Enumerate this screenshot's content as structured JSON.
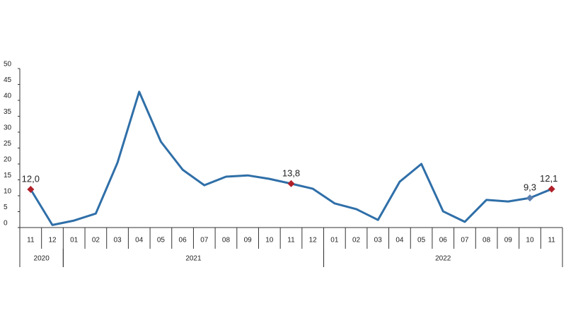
{
  "chart_data": {
    "type": "line",
    "categories": [
      "11",
      "12",
      "01",
      "02",
      "03",
      "04",
      "05",
      "06",
      "07",
      "08",
      "09",
      "10",
      "11",
      "12",
      "01",
      "02",
      "03",
      "04",
      "05",
      "06",
      "07",
      "08",
      "09",
      "10",
      "11"
    ],
    "x_groups": [
      {
        "label": "2020",
        "span": 2
      },
      {
        "label": "2021",
        "span": 12
      },
      {
        "label": "2022",
        "span": 11
      }
    ],
    "series": [
      {
        "color": "#2f6fa8",
        "values": [
          12.0,
          0.8,
          2.2,
          4.4,
          20.4,
          42.7,
          27,
          18.2,
          13.3,
          16,
          16.4,
          15.3,
          13.8,
          12.2,
          7.6,
          5.8,
          2.4,
          14.4,
          20,
          5.1,
          1.8,
          8.7,
          8.2,
          9.3,
          12.1
        ],
        "value_labels": [
          "12,0",
          null,
          null,
          null,
          null,
          null,
          null,
          null,
          null,
          null,
          null,
          null,
          "13,8",
          null,
          null,
          null,
          null,
          null,
          null,
          null,
          null,
          null,
          null,
          "9,3",
          "12,1"
        ],
        "marker_colors": [
          "#b0202a",
          null,
          null,
          null,
          null,
          null,
          null,
          null,
          null,
          null,
          null,
          null,
          "#b0202a",
          null,
          null,
          null,
          null,
          null,
          null,
          null,
          null,
          null,
          null,
          "#5b7fb0",
          "#b0202a"
        ]
      }
    ],
    "ylim": [
      0,
      50
    ],
    "yticks": [
      0,
      5,
      10,
      15,
      20,
      25,
      30,
      35,
      40,
      45,
      50
    ]
  }
}
